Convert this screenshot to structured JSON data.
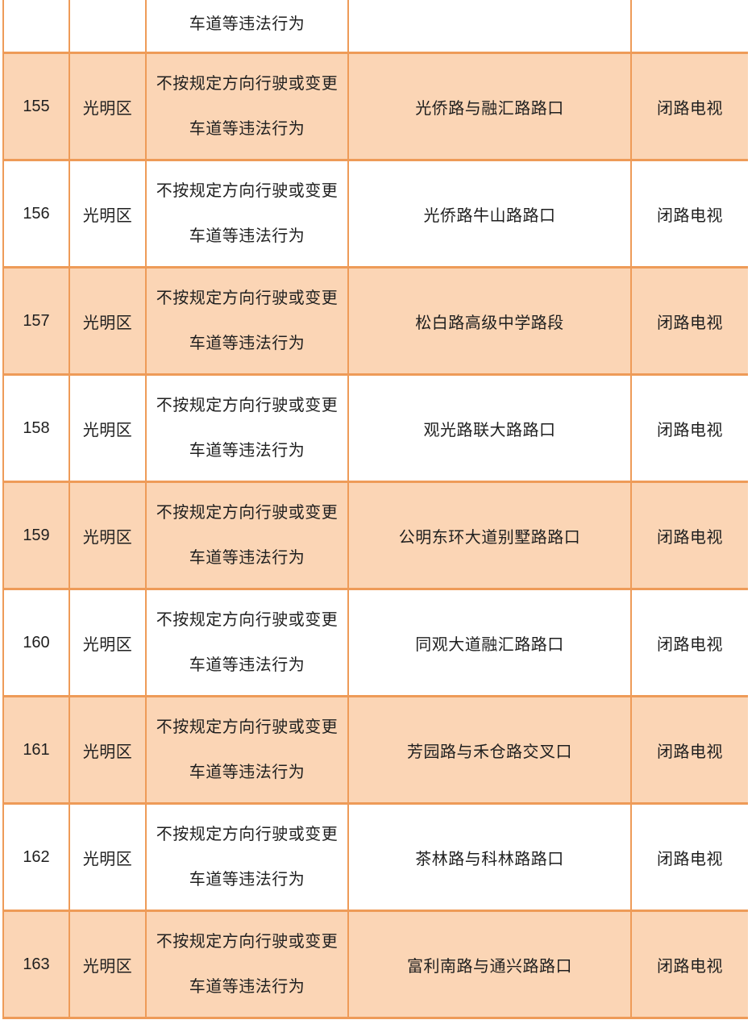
{
  "table": {
    "partial_top_row": {
      "violation_line2": "车道等违法行为"
    },
    "columns": [
      "no",
      "district",
      "violation",
      "location",
      "method"
    ],
    "rows": [
      {
        "no": "155",
        "district": "光明区",
        "violation_line1": "不按规定方向行驶或变更",
        "violation_line2": "车道等违法行为",
        "location": "光侨路与融汇路路口",
        "method": "闭路电视",
        "shaded": true
      },
      {
        "no": "156",
        "district": "光明区",
        "violation_line1": "不按规定方向行驶或变更",
        "violation_line2": "车道等违法行为",
        "location": "光侨路牛山路路口",
        "method": "闭路电视",
        "shaded": false
      },
      {
        "no": "157",
        "district": "光明区",
        "violation_line1": "不按规定方向行驶或变更",
        "violation_line2": "车道等违法行为",
        "location": "松白路高级中学路段",
        "method": "闭路电视",
        "shaded": true
      },
      {
        "no": "158",
        "district": "光明区",
        "violation_line1": "不按规定方向行驶或变更",
        "violation_line2": "车道等违法行为",
        "location": "观光路联大路路口",
        "method": "闭路电视",
        "shaded": false
      },
      {
        "no": "159",
        "district": "光明区",
        "violation_line1": "不按规定方向行驶或变更",
        "violation_line2": "车道等违法行为",
        "location": "公明东环大道别墅路路口",
        "method": "闭路电视",
        "shaded": true
      },
      {
        "no": "160",
        "district": "光明区",
        "violation_line1": "不按规定方向行驶或变更",
        "violation_line2": "车道等违法行为",
        "location": "同观大道融汇路路口",
        "method": "闭路电视",
        "shaded": false
      },
      {
        "no": "161",
        "district": "光明区",
        "violation_line1": "不按规定方向行驶或变更",
        "violation_line2": "车道等违法行为",
        "location": "芳园路与禾仓路交叉口",
        "method": "闭路电视",
        "shaded": true
      },
      {
        "no": "162",
        "district": "光明区",
        "violation_line1": "不按规定方向行驶或变更",
        "violation_line2": "车道等违法行为",
        "location": "茶林路与科林路路口",
        "method": "闭路电视",
        "shaded": false
      },
      {
        "no": "163",
        "district": "光明区",
        "violation_line1": "不按规定方向行驶或变更",
        "violation_line2": "车道等违法行为",
        "location": "富利南路与通兴路路口",
        "method": "闭路电视",
        "shaded": true
      }
    ]
  },
  "colors": {
    "row_shade": "#FBD5B5",
    "row_plain": "#FFFFFF",
    "grid_border": "#EE9B58",
    "text": "#1F1F1F"
  }
}
